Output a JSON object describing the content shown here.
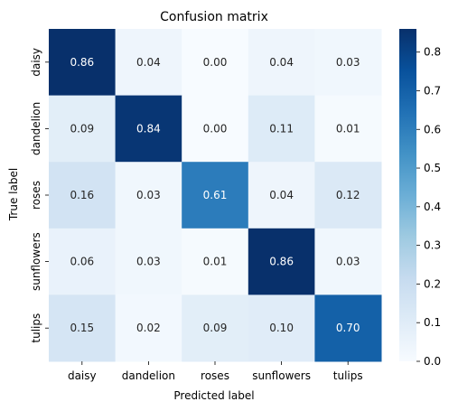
{
  "chart_data": {
    "type": "heatmap",
    "title": "Confusion matrix",
    "xlabel": "Predicted label",
    "ylabel": "True label",
    "x_categories": [
      "daisy",
      "dandelion",
      "roses",
      "sunflowers",
      "tulips"
    ],
    "y_categories": [
      "daisy",
      "dandelion",
      "roses",
      "sunflowers",
      "tulips"
    ],
    "values": [
      [
        0.86,
        0.04,
        0.0,
        0.04,
        0.03
      ],
      [
        0.09,
        0.84,
        0.0,
        0.11,
        0.01
      ],
      [
        0.16,
        0.03,
        0.61,
        0.04,
        0.12
      ],
      [
        0.06,
        0.03,
        0.01,
        0.86,
        0.03
      ],
      [
        0.15,
        0.02,
        0.09,
        0.1,
        0.7
      ]
    ],
    "colormap": "Blues",
    "vmin": 0.0,
    "vmax": 0.86,
    "colorbar_ticks": [
      "0.0",
      "0.1",
      "0.2",
      "0.3",
      "0.4",
      "0.5",
      "0.6",
      "0.7",
      "0.8"
    ],
    "annotation_format": "2 decimals",
    "grid": false,
    "legend": "colorbar-right"
  }
}
